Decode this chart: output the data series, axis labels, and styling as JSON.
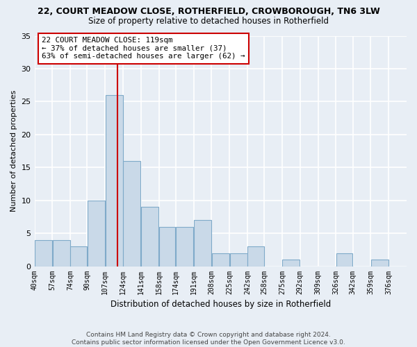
{
  "title1": "22, COURT MEADOW CLOSE, ROTHERFIELD, CROWBOROUGH, TN6 3LW",
  "title2": "Size of property relative to detached houses in Rotherfield",
  "xlabel": "Distribution of detached houses by size in Rotherfield",
  "ylabel": "Number of detached properties",
  "categories": [
    "40sqm",
    "57sqm",
    "74sqm",
    "90sqm",
    "107sqm",
    "124sqm",
    "141sqm",
    "158sqm",
    "174sqm",
    "191sqm",
    "208sqm",
    "225sqm",
    "242sqm",
    "258sqm",
    "275sqm",
    "292sqm",
    "309sqm",
    "326sqm",
    "342sqm",
    "359sqm",
    "376sqm"
  ],
  "values": [
    4,
    4,
    3,
    10,
    26,
    16,
    9,
    6,
    6,
    7,
    2,
    2,
    3,
    0,
    1,
    0,
    0,
    2,
    0,
    1,
    0
  ],
  "bar_color": "#c9d9e8",
  "bar_edge_color": "#7faac9",
  "background_color": "#e8eef5",
  "grid_color": "#ffffff",
  "property_line_x": 119,
  "bin_edges": [
    40,
    57,
    74,
    90,
    107,
    124,
    141,
    158,
    174,
    191,
    208,
    225,
    242,
    258,
    275,
    292,
    309,
    326,
    342,
    359,
    376,
    393
  ],
  "annotation_title": "22 COURT MEADOW CLOSE: 119sqm",
  "annotation_line1": "← 37% of detached houses are smaller (37)",
  "annotation_line2": "63% of semi-detached houses are larger (62) →",
  "footer1": "Contains HM Land Registry data © Crown copyright and database right 2024.",
  "footer2": "Contains public sector information licensed under the Open Government Licence v3.0.",
  "ylim": [
    0,
    35
  ],
  "yticks": [
    0,
    5,
    10,
    15,
    20,
    25,
    30,
    35
  ]
}
